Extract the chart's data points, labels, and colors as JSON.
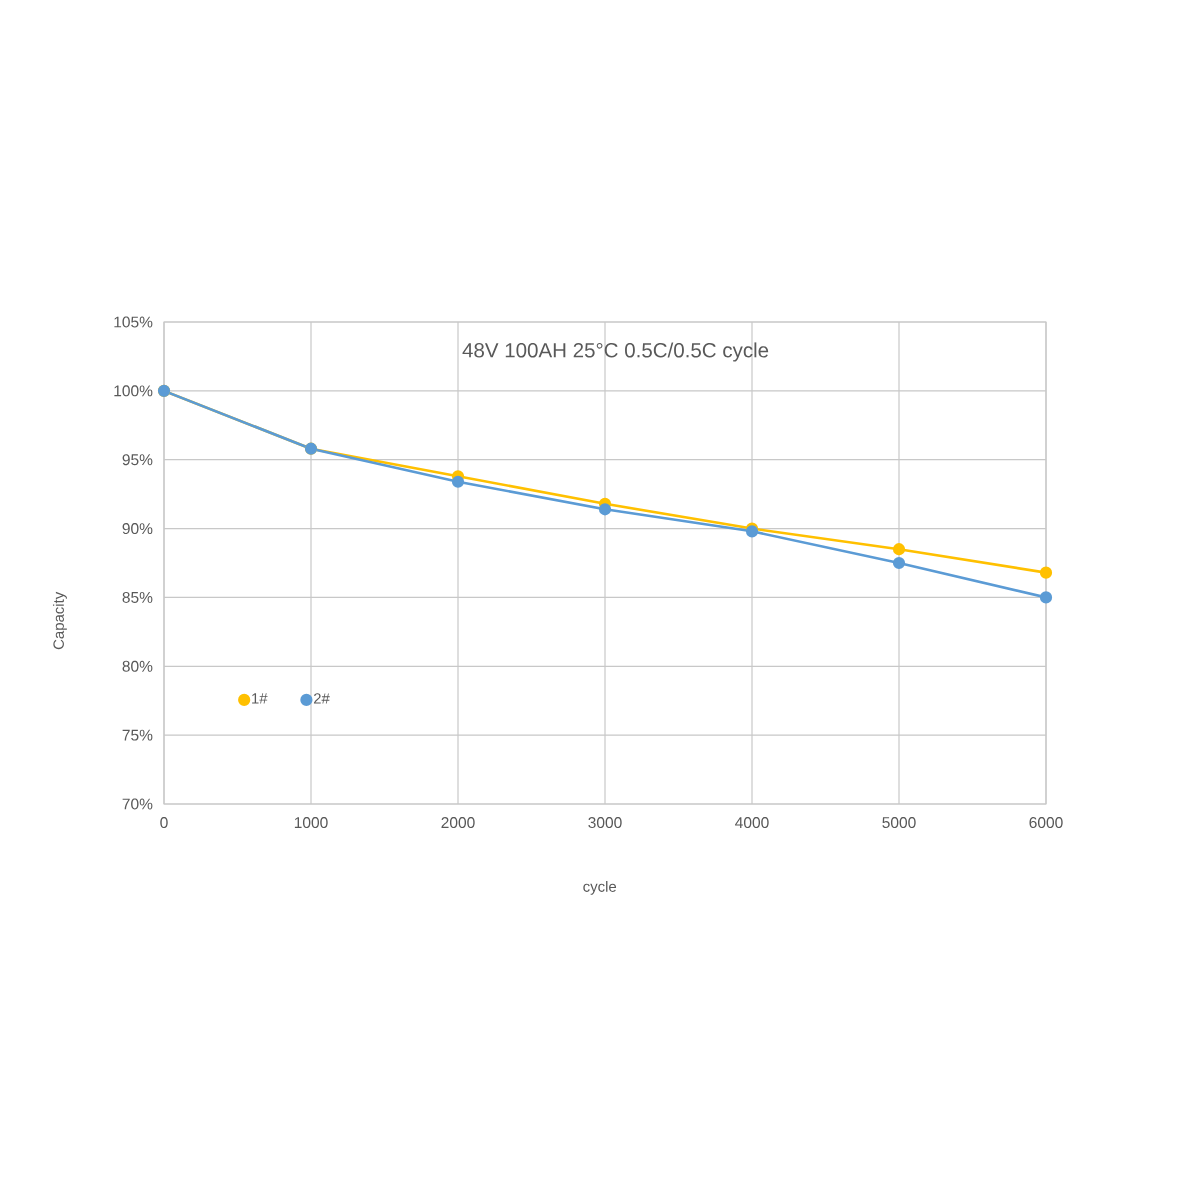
{
  "chart_data": {
    "type": "line",
    "title": "48V 100AH 25°C 0.5C/0.5C cycle",
    "xlabel": "cycle",
    "ylabel": "Capacity",
    "x": [
      0,
      1000,
      2000,
      3000,
      4000,
      5000,
      6000
    ],
    "series": [
      {
        "name": "1#",
        "color": "#ffc000",
        "values": [
          100,
          95.8,
          93.8,
          91.8,
          90.0,
          88.5,
          86.8
        ]
      },
      {
        "name": "2#",
        "color": "#5b9bd5",
        "values": [
          100,
          95.8,
          93.4,
          91.4,
          89.8,
          87.5,
          85.0
        ]
      }
    ],
    "xlim": [
      0,
      6000
    ],
    "ylim": [
      70,
      105
    ],
    "xticks": [
      0,
      1000,
      2000,
      3000,
      4000,
      5000,
      6000
    ],
    "yticks": [
      {
        "value": 70,
        "label": "70%"
      },
      {
        "value": 75,
        "label": "75%"
      },
      {
        "value": 80,
        "label": "80%"
      },
      {
        "value": 85,
        "label": "85%"
      },
      {
        "value": 90,
        "label": "90%"
      },
      {
        "value": 95,
        "label": "95%"
      },
      {
        "value": 100,
        "label": "100%"
      },
      {
        "value": 105,
        "label": "105%"
      }
    ],
    "grid": true,
    "legend": "bottom left",
    "marker": "circle",
    "line_style": "solid"
  }
}
